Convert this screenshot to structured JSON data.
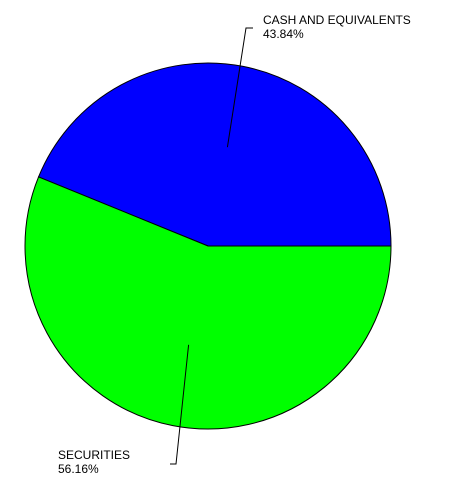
{
  "chart_data": {
    "type": "pie",
    "title": "",
    "slices": [
      {
        "label": "CASH AND EQUIVALENTS",
        "value": 43.84,
        "value_label": "43.84%",
        "color": "#0000ff"
      },
      {
        "label": "SECURITIES",
        "value": 56.16,
        "value_label": "56.16%",
        "color": "#00ff00"
      }
    ],
    "start_angle": "3 o'clock",
    "direction": "counter-clockwise",
    "legend": "none",
    "outline_color": "#000000"
  }
}
